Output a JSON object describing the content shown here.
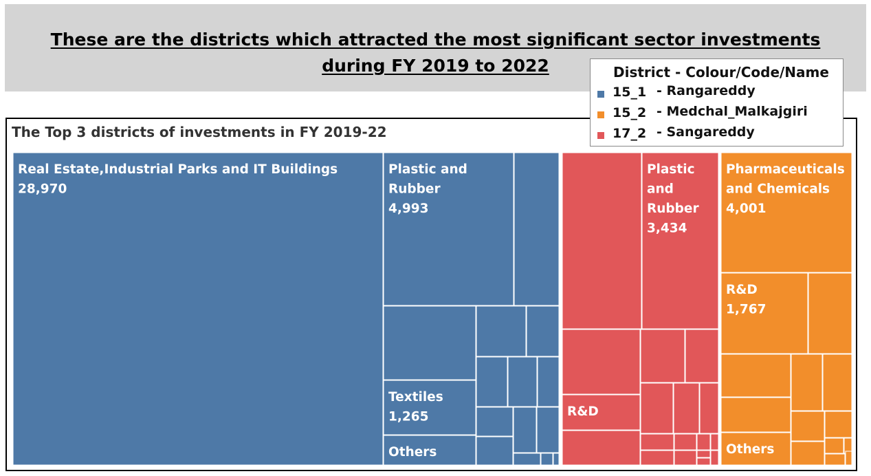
{
  "header": {
    "title_line1": "These are the districts which attracted the most significant sector investments",
    "title_line2": "during FY 2019 to 2022"
  },
  "legend": {
    "title": "District - Colour/Code/Name",
    "items": [
      {
        "code": "15_1",
        "name": "- Rangareddy",
        "color": "#4e79a7"
      },
      {
        "code": "15_2",
        "name": "- Medchal_Malkajgiri",
        "color": "#f28e2b"
      },
      {
        "code": "17_2",
        "name": "- Sangareddy",
        "color": "#e15759"
      }
    ]
  },
  "chart_data": {
    "type": "treemap",
    "title": "The Top 3 districts of investments in FY 2019-22",
    "districts": [
      {
        "code": "15_1",
        "name": "Rangareddy",
        "color": "#4e79a7",
        "labeled_sectors": [
          {
            "sector": "Real Estate,Industrial Parks and IT Buildings",
            "value": 28970
          },
          {
            "sector": "Plastic and Rubber",
            "value": 4993
          },
          {
            "sector": "Textiles",
            "value": 1265
          },
          {
            "sector": "Others",
            "value": null
          }
        ]
      },
      {
        "code": "17_2",
        "name": "Sangareddy",
        "color": "#e15759",
        "labeled_sectors": [
          {
            "sector": "Plastic and Rubber",
            "value": 3434
          },
          {
            "sector": "R&D",
            "value": null
          }
        ]
      },
      {
        "code": "15_2",
        "name": "Medchal_Malkajgiri",
        "color": "#f28e2b",
        "labeled_sectors": [
          {
            "sector": "Pharmaceuticals and Chemicals",
            "value": 4001
          },
          {
            "sector": "R&D",
            "value": 1767
          },
          {
            "sector": "Others",
            "value": null
          }
        ]
      }
    ],
    "cell_labels": {
      "rr_realestate": [
        "Real Estate,Industrial Parks and IT Buildings",
        "28,970"
      ],
      "rr_plastic": [
        "Plastic and",
        "Rubber",
        "4,993"
      ],
      "rr_textiles": [
        "Textiles",
        "1,265"
      ],
      "rr_others": [
        "Others"
      ],
      "sg_plastic": [
        "Plastic",
        "and",
        "Rubber",
        "3,434"
      ],
      "sg_rnd": [
        "R&D"
      ],
      "md_pharma": [
        "Pharmaceuticals",
        "and Chemicals",
        "4,001"
      ],
      "md_rnd": [
        "R&D",
        "1,767"
      ],
      "md_others": [
        "Others"
      ]
    }
  }
}
